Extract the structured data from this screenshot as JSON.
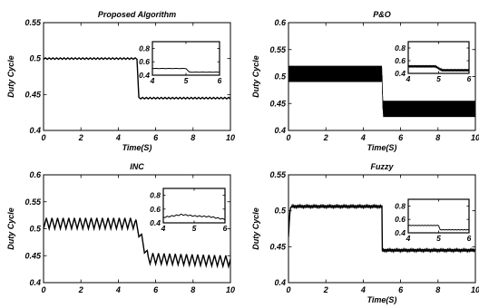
{
  "chart_data": [
    {
      "type": "line",
      "title": "Proposed Algorithm",
      "xlabel": "Time(S)",
      "ylabel": "Duty Cycle",
      "xlim": [
        0,
        10
      ],
      "ylim": [
        0.4,
        0.55
      ],
      "xticks": [
        "0",
        "2",
        "4",
        "6",
        "8",
        "10"
      ],
      "yticks": [
        "0.4",
        "0.45",
        "0.5",
        "0.55"
      ],
      "series": [
        {
          "x": [
            0,
            1,
            2,
            3,
            4,
            4.9,
            4.95,
            5.0,
            5.1,
            6,
            7,
            8,
            9,
            10
          ],
          "y": [
            0.5,
            0.5,
            0.5,
            0.5,
            0.5,
            0.5,
            0.5,
            0.5,
            0.445,
            0.445,
            0.445,
            0.445,
            0.445,
            0.445
          ],
          "ripple": 0.001,
          "ripple_period": 0.2
        }
      ],
      "inset": {
        "xlim": [
          4,
          6
        ],
        "ylim": [
          0.4,
          0.9
        ],
        "xticks": [
          "4",
          "5",
          "6"
        ],
        "yticks": [
          "0.4",
          "0.6",
          "0.8"
        ],
        "x": [
          4,
          4.9,
          5.0,
          5.1,
          6
        ],
        "y": [
          0.5,
          0.5,
          0.5,
          0.445,
          0.445
        ],
        "ripple": 0.002,
        "ripple_period": 0.2
      }
    },
    {
      "type": "line",
      "title": "P&O",
      "xlabel": "Time(S)",
      "ylabel": "Duty Cycle",
      "xlim": [
        0,
        10
      ],
      "ylim": [
        0.4,
        0.6
      ],
      "xticks": [
        "0",
        "2",
        "4",
        "6",
        "8",
        "10"
      ],
      "yticks": [
        "0.4",
        "0.45",
        "0.5",
        "0.55",
        "0.6"
      ],
      "series": [
        {
          "x": [
            0,
            5,
            5.05,
            10
          ],
          "y": [
            0.505,
            0.505,
            0.44,
            0.44
          ],
          "ripple": 0.015,
          "ripple_period": 0.02
        }
      ],
      "inset": {
        "xlim": [
          4,
          6
        ],
        "ylim": [
          0.4,
          0.9
        ],
        "xticks": [
          "4",
          "5",
          "6"
        ],
        "yticks": [
          "0.4",
          "0.6",
          "0.8"
        ],
        "x": [
          4,
          4.9,
          5.1,
          6
        ],
        "y": [
          0.51,
          0.51,
          0.45,
          0.45
        ],
        "ripple": 0.018,
        "ripple_period": 0.04
      }
    },
    {
      "type": "line",
      "title": "INC",
      "xlabel": "",
      "ylabel": "Duty Cycle",
      "xlim": [
        0,
        10
      ],
      "ylim": [
        0.4,
        0.6
      ],
      "xticks": [
        "0",
        "2",
        "4",
        "6",
        "8",
        "10"
      ],
      "yticks": [
        "0.4",
        "0.45",
        "0.5",
        "0.55",
        "0.6"
      ],
      "series": [
        {
          "x": [
            0,
            4.9,
            5.1,
            5.6,
            10
          ],
          "y": [
            0.51,
            0.51,
            0.495,
            0.445,
            0.44
          ],
          "ripple": 0.01,
          "ripple_period": 0.3
        }
      ],
      "inset": {
        "xlim": [
          4,
          6
        ],
        "ylim": [
          0.4,
          0.9
        ],
        "xticks": [
          "4",
          "5",
          "6"
        ],
        "yticks": [
          "0.4",
          "0.6",
          "0.8"
        ],
        "x": [
          4,
          4.6,
          5.0,
          5.5,
          6
        ],
        "y": [
          0.48,
          0.52,
          0.5,
          0.49,
          0.45
        ],
        "ripple": 0.008,
        "ripple_period": 0.15
      }
    },
    {
      "type": "line",
      "title": "Fuzzy",
      "xlabel": "Time(S)",
      "ylabel": "Duty Cycle",
      "xlim": [
        0,
        10
      ],
      "ylim": [
        0.4,
        0.55
      ],
      "xticks": [
        "0",
        "2",
        "4",
        "6",
        "8",
        "10"
      ],
      "yticks": [
        "0.4",
        "0.45",
        "0.5",
        "0.55"
      ],
      "series": [
        {
          "x": [
            0,
            0.08,
            0.15,
            5,
            5.02,
            10
          ],
          "y": [
            0.465,
            0.5,
            0.506,
            0.506,
            0.445,
            0.445
          ],
          "ripple": 0.0015,
          "ripple_period": 0.08
        }
      ],
      "inset": {
        "xlim": [
          4,
          6
        ],
        "ylim": [
          0.4,
          0.9
        ],
        "xticks": [
          "4",
          "5",
          "6"
        ],
        "yticks": [
          "0.4",
          "0.6",
          "0.8"
        ],
        "x": [
          4,
          5.0,
          5.05,
          6
        ],
        "y": [
          0.51,
          0.51,
          0.445,
          0.445
        ],
        "ripple": 0.003,
        "ripple_period": 0.1
      }
    }
  ]
}
